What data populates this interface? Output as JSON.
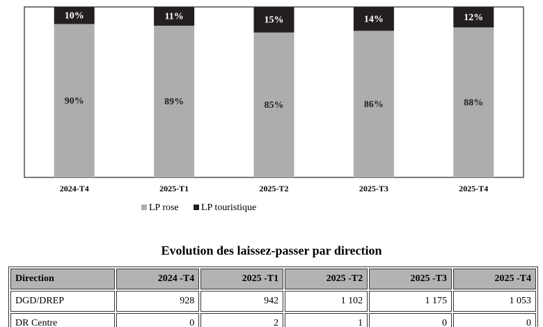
{
  "chart_data": {
    "type": "stacked_bar",
    "categories": [
      "2024-T4",
      "2025-T1",
      "2025-T2",
      "2025-T3",
      "2025-T4"
    ],
    "ylim": [
      0,
      100
    ],
    "series": [
      {
        "name": "LP rose",
        "color": "#adadad",
        "values": [
          90,
          89,
          85,
          86,
          88
        ],
        "value_labels": [
          "90%",
          "89%",
          "85%",
          "86%",
          "88%"
        ]
      },
      {
        "name": "LP touristique",
        "color": "#231f20",
        "values": [
          10,
          11,
          15,
          14,
          12
        ],
        "value_labels": [
          "10%",
          "11%",
          "15%",
          "14%",
          "12%"
        ]
      }
    ]
  },
  "table": {
    "title": "Evolution des laissez-passer par direction",
    "header": [
      "Direction",
      "2024 -T4",
      "2025 -T1",
      "2025 -T2",
      "2025 -T3",
      "2025 -T4"
    ],
    "rows": [
      [
        "DGD/DREP",
        "928",
        "942",
        "1 102",
        "1 175",
        "1 053"
      ],
      [
        "DR Centre",
        "0",
        "2",
        "1",
        "0",
        "0"
      ]
    ]
  }
}
